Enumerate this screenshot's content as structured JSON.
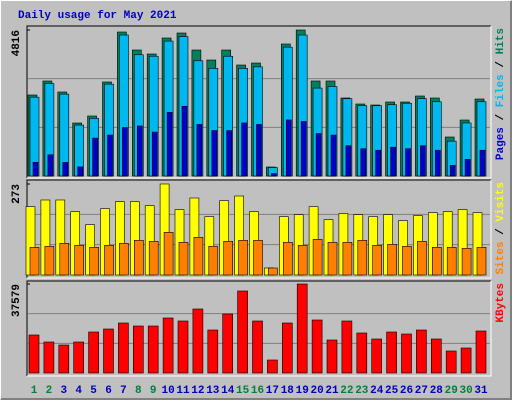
{
  "chart_data": [
    {
      "type": "bar",
      "title": "Daily usage for May 2021",
      "legend_separator": "/",
      "ylim": [
        0,
        4816
      ],
      "yticks": [
        4816
      ],
      "series": [
        {
          "name": "Hits",
          "color": "#00805c",
          "values": [
            2672,
            3134,
            2771,
            1748,
            1979,
            3101,
            4750,
            4156,
            4024,
            4552,
            4717,
            4156,
            3826,
            4156,
            3661,
            3727,
            297,
            4354,
            4816,
            3134,
            3134,
            2573,
            2375,
            2342,
            2441,
            2441,
            2639,
            2573,
            1286,
            1847,
            2540
          ]
        },
        {
          "name": "Files",
          "color": "#00b8f0",
          "values": [
            2600,
            3050,
            2700,
            1680,
            1900,
            3030,
            4650,
            4000,
            3950,
            4450,
            4600,
            3800,
            3550,
            3950,
            3550,
            3600,
            280,
            4250,
            4650,
            2900,
            2950,
            2550,
            2320,
            2320,
            2350,
            2400,
            2550,
            2450,
            1150,
            1750,
            2450
          ]
        },
        {
          "name": "Pages",
          "color": "#0000d0",
          "values": [
            450,
            700,
            450,
            300,
            1250,
            1350,
            1600,
            1650,
            1450,
            2100,
            2300,
            1700,
            1500,
            1500,
            1750,
            1700,
            80,
            1850,
            1800,
            1400,
            1350,
            1000,
            900,
            850,
            950,
            900,
            1000,
            850,
            350,
            550,
            850
          ]
        }
      ]
    },
    {
      "type": "bar",
      "legend_separator": "/",
      "ylim": [
        0,
        273
      ],
      "yticks": [
        273
      ],
      "series": [
        {
          "name": "Visits",
          "color": "#ffff00",
          "values": [
            205,
            225,
            225,
            190,
            151,
            199,
            220,
            220,
            208,
            273,
            196,
            231,
            175,
            223,
            237,
            190,
            21,
            175,
            181,
            205,
            166,
            184,
            181,
            175,
            181,
            163,
            178,
            187,
            190,
            196,
            187
          ]
        },
        {
          "name": "Sites",
          "color": "#ff8000",
          "values": [
            83,
            86,
            95,
            89,
            83,
            89,
            95,
            104,
            101,
            128,
            98,
            113,
            86,
            101,
            104,
            104,
            21,
            98,
            89,
            107,
            98,
            98,
            104,
            89,
            92,
            86,
            101,
            83,
            83,
            80,
            83
          ]
        }
      ]
    },
    {
      "type": "bar",
      "ylim": [
        0,
        37579
      ],
      "yticks": [
        37579
      ],
      "categories": [
        "1",
        "2",
        "3",
        "4",
        "5",
        "6",
        "7",
        "8",
        "9",
        "10",
        "11",
        "12",
        "13",
        "14",
        "15",
        "16",
        "17",
        "18",
        "19",
        "20",
        "21",
        "22",
        "23",
        "24",
        "25",
        "26",
        "27",
        "28",
        "29",
        "30",
        "31"
      ],
      "category_colors": [
        "#008040",
        "#008040",
        "#0000c0",
        "#0000c0",
        "#0000c0",
        "#0000c0",
        "#0000c0",
        "#008040",
        "#008040",
        "#0000c0",
        "#0000c0",
        "#0000c0",
        "#0000c0",
        "#0000c0",
        "#008040",
        "#008040",
        "#0000c0",
        "#0000c0",
        "#0000c0",
        "#0000c0",
        "#0000c0",
        "#008040",
        "#008040",
        "#0000c0",
        "#0000c0",
        "#0000c0",
        "#0000c0",
        "#0000c0",
        "#008040",
        "#008040",
        "#0000c0"
      ],
      "series": [
        {
          "name": "KBytes",
          "color": "#ff0000",
          "values": [
            16044,
            13090,
            11823,
            13090,
            17312,
            18579,
            21112,
            19846,
            19846,
            23223,
            21957,
            27024,
            18157,
            24913,
            34624,
            21957,
            5489,
            21112,
            37579,
            22379,
            13934,
            21957,
            16890,
            14357,
            17312,
            16468,
            18157,
            14357,
            9290,
            10556,
            17735
          ]
        }
      ]
    }
  ]
}
